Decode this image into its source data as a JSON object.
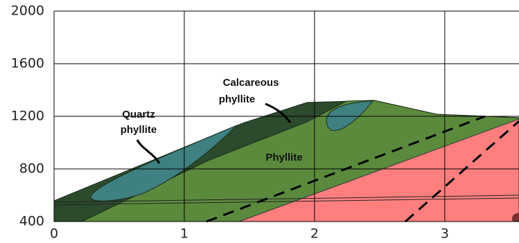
{
  "chart_data": {
    "type": "cross-section",
    "xlim": [
      0,
      3.57
    ],
    "ylim": [
      400,
      2000
    ],
    "xticks": [
      0,
      1,
      2,
      3
    ],
    "yticks": [
      400,
      800,
      1200,
      1600,
      2000
    ],
    "grid": true,
    "annotations": [
      {
        "lines": [
          "Quartz",
          "phyllite"
        ]
      },
      {
        "lines": [
          "Calcareous",
          "phyllite"
        ]
      },
      {
        "lines": [
          "Phyllite"
        ]
      }
    ]
  }
}
